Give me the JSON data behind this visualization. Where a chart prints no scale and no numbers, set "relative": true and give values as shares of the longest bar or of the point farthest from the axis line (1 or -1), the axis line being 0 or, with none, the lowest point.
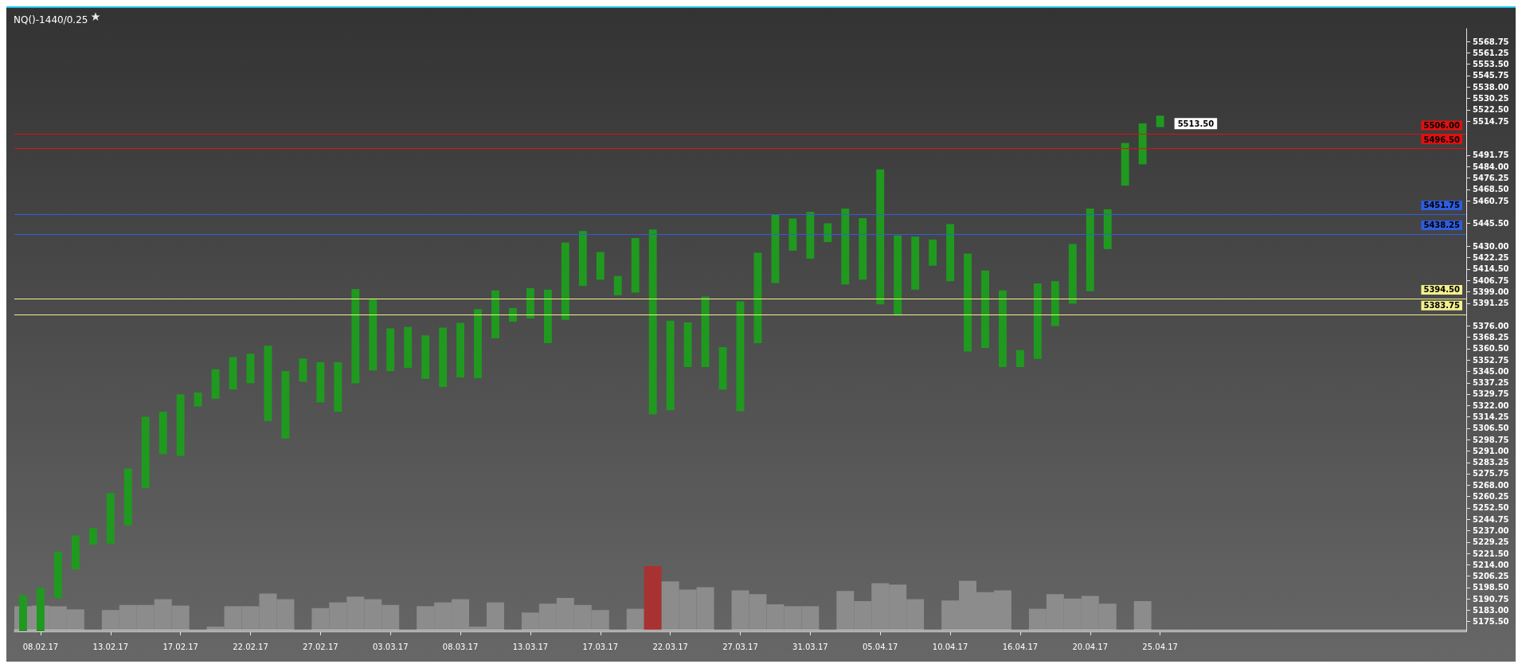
{
  "chart_data": [
    {
      "type": "bar",
      "title": "NQ()-1440/0.25",
      "categories": [
        null,
        "08.02.17",
        null,
        null,
        null,
        "13.02.17",
        null,
        null,
        null,
        "17.02.17",
        null,
        null,
        null,
        "22.02.17",
        null,
        null,
        null,
        "27.02.17",
        null,
        null,
        null,
        "03.03.17",
        null,
        null,
        null,
        "08.03.17",
        null,
        null,
        null,
        "13.03.17",
        null,
        null,
        null,
        "17.03.17",
        null,
        null,
        null,
        "22.03.17",
        null,
        null,
        null,
        "27.03.17",
        null,
        null,
        null,
        "31.03.17",
        null,
        null,
        null,
        "05.04.17",
        null,
        null,
        null,
        "10.04.17",
        null,
        null,
        null,
        "16.04.17",
        null,
        null,
        null,
        "20.04.17",
        null,
        null,
        null,
        "25.04.17",
        null,
        null,
        null,
        null,
        null,
        null,
        null,
        null,
        null,
        null,
        null,
        null,
        null,
        null,
        null,
        null,
        null
      ],
      "base": [
        5169.25,
        5169,
        5191.25,
        5210.75,
        5227.5,
        5228.25,
        5240.5,
        5266,
        5289,
        5287.75,
        5321.25,
        5326.5,
        5332.75,
        5337,
        5311.5,
        5299.5,
        5338,
        5324,
        5317.75,
        5337,
        5345.75,
        5345.25,
        5347.5,
        5340,
        5334.5,
        5341,
        5340.5,
        5367.5,
        5378.75,
        5381,
        5364.25,
        5380,
        5403,
        5407.25,
        5396.75,
        5398.5,
        5316,
        5318.75,
        5348,
        5348,
        5332.75,
        5318,
        5364.25,
        5405,
        5427,
        5421.5,
        5432.75,
        5404,
        5407.25,
        5390.5,
        5383,
        5400.5,
        5416.75,
        5406.25,
        5358.5,
        5361,
        5348,
        5348,
        5353.5,
        5375.75,
        5391,
        5399.5,
        5428,
        5471,
        5485.5,
        5510.75,
        null,
        null,
        null,
        null,
        null,
        null,
        null,
        null,
        null,
        null,
        null,
        null,
        null,
        null,
        null,
        null,
        null
      ],
      "values": [
        24,
        29.5,
        31.5,
        23,
        11.25,
        34.25,
        38.75,
        48.25,
        28.75,
        41.75,
        9.5,
        20,
        22,
        20,
        51,
        45.75,
        15.75,
        27.25,
        33.5,
        64,
        48.25,
        29,
        27.75,
        29.5,
        40.25,
        37,
        46.75,
        32.5,
        9.25,
        20.5,
        36.25,
        52.5,
        37.25,
        18.75,
        13,
        37,
        125.25,
        60.75,
        30.25,
        47.75,
        28.75,
        74.5,
        61.25,
        46.5,
        21.75,
        31.75,
        12.75,
        51.5,
        41.75,
        91.5,
        54.25,
        36,
        17.75,
        38.75,
        66.5,
        52.5,
        52,
        11.5,
        51.25,
        30.5,
        40.5,
        56,
        27,
        29,
        27.75,
        7.75,
        null,
        null,
        null,
        null,
        null,
        null,
        null,
        null,
        null,
        null,
        null,
        null,
        null,
        null,
        null,
        null,
        null
      ],
      "color": "#1f9a1f",
      "ylim": [
        5168.75,
        5577.5
      ],
      "yticks": [
        5568.75,
        5561.25,
        {
          "value": 5553.5,
          "label": "5553.50"
        },
        5545.75,
        {
          "value": 5538,
          "label": "5538.00"
        },
        5530.25,
        {
          "value": 5522.5,
          "label": "5522.50"
        },
        5514.75,
        5491.75,
        {
          "value": 5484,
          "label": "5484.00"
        },
        5476.25,
        {
          "value": 5468.5,
          "label": "5468.50"
        },
        5460.75,
        {
          "value": 5445.5,
          "label": "5445.50"
        },
        {
          "value": 5430,
          "label": "5430.00"
        },
        5422.25,
        {
          "value": 5414.5,
          "label": "5414.50"
        },
        5406.75,
        {
          "value": 5399,
          "label": "5399.00"
        },
        5391.25,
        {
          "value": 5376,
          "label": "5376.00"
        },
        5368.25,
        {
          "value": 5360.5,
          "label": "5360.50"
        },
        5352.75,
        {
          "value": 5345,
          "label": "5345.00"
        },
        5337.25,
        5329.75,
        {
          "value": 5322,
          "label": "5322.00"
        },
        5314.25,
        {
          "value": 5306.5,
          "label": "5306.50"
        },
        5298.75,
        {
          "value": 5291,
          "label": "5291.00"
        },
        5283.25,
        5275.75,
        {
          "value": 5268,
          "label": "5268.00"
        },
        5260.25,
        {
          "value": 5252.5,
          "label": "5252.50"
        },
        5244.75,
        {
          "value": 5237,
          "label": "5237.00"
        },
        5229.25,
        {
          "value": 5221.5,
          "label": "5221.50"
        },
        {
          "value": 5214,
          "label": "5214.00"
        },
        5206.25,
        {
          "value": 5198.5,
          "label": "5198.50"
        },
        5190.75,
        {
          "value": 5183,
          "label": "5183.00"
        },
        {
          "value": 5175.5,
          "label": "5175.50"
        }
      ],
      "ref_lines": [
        {
          "axis": "y",
          "value": 5506,
          "label": "5506.00",
          "color": "#e01010"
        },
        {
          "axis": "y",
          "value": 5496.5,
          "label": "5496.50",
          "color": "#e01010"
        },
        {
          "axis": "y",
          "value": 5451.75,
          "label": "5451.75",
          "color": "#2f5de0"
        },
        {
          "axis": "y",
          "value": 5438.25,
          "label": "5438.25",
          "color": "#2f5de0"
        },
        {
          "axis": "y",
          "value": 5394.5,
          "label": "5394.50",
          "color": "#f3f08c"
        },
        {
          "axis": "y",
          "value": 5383.75,
          "label": "5383.75",
          "color": "#f3f08c"
        }
      ],
      "annotations": [
        "5513.50"
      ]
    },
    {
      "type": "bar",
      "relative": true,
      "tick_labels": false,
      "categories": [
        null,
        "08.02.17",
        null,
        null,
        null,
        "13.02.17",
        null,
        null,
        null,
        "17.02.17",
        null,
        null,
        null,
        "22.02.17",
        null,
        null,
        null,
        "27.02.17",
        null,
        null,
        null,
        "03.03.17",
        null,
        null,
        null,
        "08.03.17",
        null,
        null,
        null,
        "13.03.17",
        null,
        null,
        null,
        "17.03.17",
        null,
        null,
        null,
        "22.03.17",
        null,
        null,
        null,
        "27.03.17",
        null,
        null,
        null,
        "31.03.17",
        null,
        null,
        null,
        "05.04.17",
        null,
        null,
        null,
        "10.04.17",
        null,
        null,
        null,
        "16.04.17",
        null,
        null,
        null,
        "20.04.17",
        null,
        null,
        null,
        "25.04.17",
        null,
        null,
        null,
        null,
        null,
        null,
        null,
        null,
        null,
        null,
        null,
        null,
        null,
        null,
        null,
        null,
        null
      ],
      "values": [
        0.37,
        0.38,
        0.37,
        0.32,
        null,
        0.31,
        0.39,
        0.39,
        0.48,
        0.38,
        null,
        0.05,
        0.37,
        0.37,
        0.57,
        0.48,
        null,
        0.34,
        0.43,
        0.52,
        0.48,
        0.39,
        null,
        0.37,
        0.43,
        0.48,
        0.05,
        0.43,
        null,
        0.27,
        0.41,
        0.5,
        0.39,
        0.31,
        null,
        0.33,
        1,
        0.76,
        0.63,
        0.67,
        null,
        0.62,
        0.56,
        0.4,
        0.37,
        0.37,
        null,
        0.61,
        0.45,
        0.73,
        0.71,
        0.48,
        null,
        0.46,
        0.77,
        0.59,
        0.62,
        null,
        0.33,
        0.56,
        0.49,
        0.53,
        0.41,
        null,
        0.45,
        null,
        null,
        null,
        null,
        null,
        null,
        null,
        null,
        null,
        null,
        null,
        null,
        null,
        null,
        null,
        null,
        null,
        null
      ],
      "colors": [
        "#8c8c8c",
        "#8c8c8c",
        "#8c8c8c",
        "#8c8c8c",
        "#8c8c8c",
        "#8c8c8c",
        "#8c8c8c",
        "#8c8c8c",
        "#8c8c8c",
        "#8c8c8c",
        "#8c8c8c",
        "#8c8c8c",
        "#8c8c8c",
        "#8c8c8c",
        "#8c8c8c",
        "#8c8c8c",
        "#8c8c8c",
        "#8c8c8c",
        "#8c8c8c",
        "#8c8c8c",
        "#8c8c8c",
        "#8c8c8c",
        "#8c8c8c",
        "#8c8c8c",
        "#8c8c8c",
        "#8c8c8c",
        "#8c8c8c",
        "#8c8c8c",
        "#8c8c8c",
        "#8c8c8c",
        "#8c8c8c",
        "#8c8c8c",
        "#8c8c8c",
        "#8c8c8c",
        "#8c8c8c",
        "#8c8c8c",
        "#a83232",
        "#8c8c8c",
        "#8c8c8c",
        "#8c8c8c",
        "#8c8c8c",
        "#8c8c8c",
        "#8c8c8c",
        "#8c8c8c",
        "#8c8c8c",
        "#8c8c8c",
        "#8c8c8c",
        "#8c8c8c",
        "#8c8c8c",
        "#8c8c8c",
        "#8c8c8c",
        "#8c8c8c",
        "#8c8c8c",
        "#8c8c8c",
        "#8c8c8c",
        "#8c8c8c",
        "#8c8c8c",
        "#8c8c8c",
        "#8c8c8c",
        "#8c8c8c",
        "#8c8c8c",
        "#8c8c8c",
        "#8c8c8c",
        "#8c8c8c",
        "#8c8c8c",
        "#8c8c8c",
        "#8c8c8c",
        "#8c8c8c",
        "#8c8c8c",
        "#8c8c8c",
        "#8c8c8c",
        "#8c8c8c",
        "#8c8c8c",
        "#8c8c8c",
        "#8c8c8c",
        "#8c8c8c",
        "#8c8c8c",
        "#8c8c8c",
        "#8c8c8c",
        "#8c8c8c",
        "#8c8c8c",
        "#8c8c8c",
        "#8c8c8c"
      ]
    }
  ]
}
